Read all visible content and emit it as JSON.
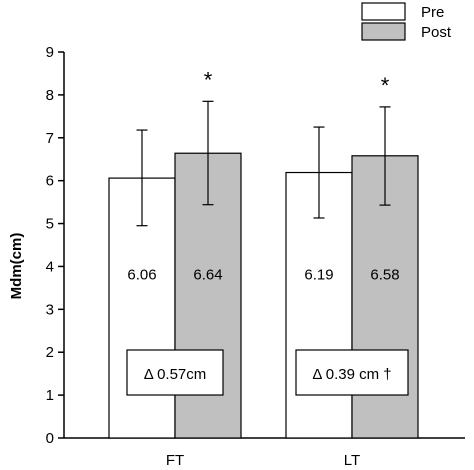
{
  "chart_data": {
    "type": "bar",
    "ylabel": "Mdm(cm)",
    "xlabel": "",
    "ylim": [
      0,
      9
    ],
    "yticks": [
      0,
      1,
      2,
      3,
      4,
      5,
      6,
      7,
      8,
      9
    ],
    "grid": false,
    "legend_position": "top-right",
    "categories": [
      "FT",
      "LT"
    ],
    "series": [
      {
        "name": "Pre",
        "color": "#ffffff",
        "values": [
          6.06,
          6.19
        ],
        "error": [
          [
            4.95,
            7.18
          ],
          [
            5.13,
            7.25
          ]
        ],
        "value_labels": [
          "6.06",
          "6.19"
        ],
        "significance": [
          "",
          ""
        ]
      },
      {
        "name": "Post",
        "color": "#c0c0c0",
        "values": [
          6.64,
          6.58
        ],
        "error": [
          [
            5.44,
            7.85
          ],
          [
            5.43,
            7.72
          ]
        ],
        "value_labels": [
          "6.64",
          "6.58"
        ],
        "significance": [
          "*",
          "*"
        ]
      }
    ],
    "annotations": [
      "Δ 0.57cm",
      "Δ 0.39 cm †"
    ]
  }
}
